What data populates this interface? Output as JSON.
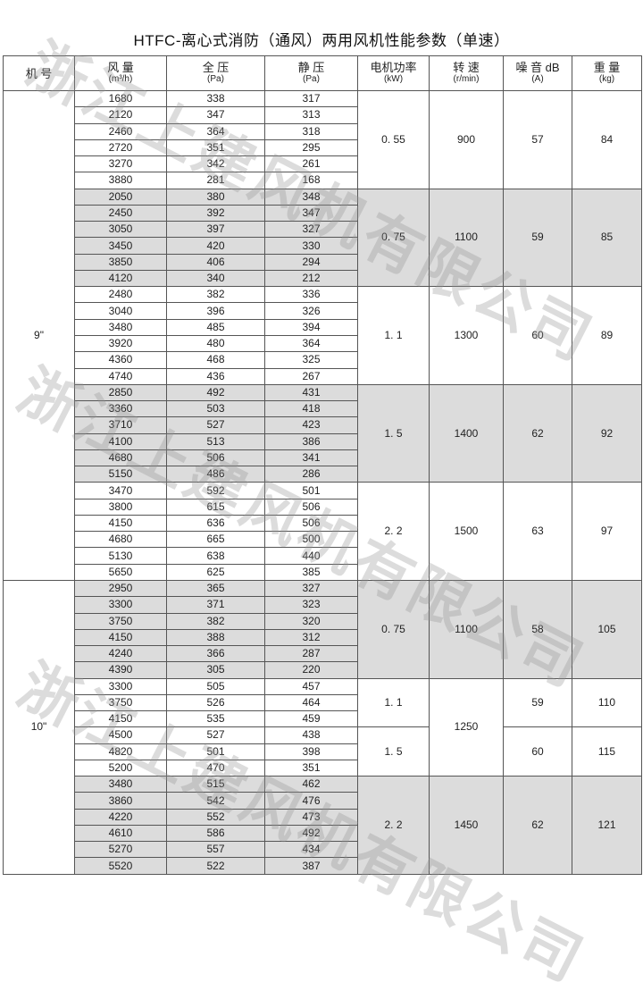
{
  "title": "HTFC-离心式消防（通风）两用风机性能参数（单速）",
  "watermark": "浙江上建风机有限公司",
  "colors": {
    "shade": "#dcdcdc",
    "border": "#555555"
  },
  "headers": [
    {
      "label": "机 号",
      "unit": ""
    },
    {
      "label": "风 量",
      "unit": "(m³/h)"
    },
    {
      "label": "全 压",
      "unit": "(Pa)"
    },
    {
      "label": "静 压",
      "unit": "(Pa)"
    },
    {
      "label": "电机功率",
      "unit": "(kW)"
    },
    {
      "label": "转 速",
      "unit": "(r/min)"
    },
    {
      "label": "噪 音 dB",
      "unit": "(A)"
    },
    {
      "label": "重 量",
      "unit": "(kg)"
    }
  ],
  "models": [
    {
      "model": "9\"",
      "groups": [
        {
          "power": "0. 55",
          "speed": "900",
          "noise": "57",
          "weight": "84",
          "shaded": false,
          "rows": [
            [
              "1680",
              "338",
              "317"
            ],
            [
              "2120",
              "347",
              "313"
            ],
            [
              "2460",
              "364",
              "318"
            ],
            [
              "2720",
              "351",
              "295"
            ],
            [
              "3270",
              "342",
              "261"
            ],
            [
              "3880",
              "281",
              "168"
            ]
          ]
        },
        {
          "power": "0. 75",
          "speed": "1100",
          "noise": "59",
          "weight": "85",
          "shaded": true,
          "rows": [
            [
              "2050",
              "380",
              "348"
            ],
            [
              "2450",
              "392",
              "347"
            ],
            [
              "3050",
              "397",
              "327"
            ],
            [
              "3450",
              "420",
              "330"
            ],
            [
              "3850",
              "406",
              "294"
            ],
            [
              "4120",
              "340",
              "212"
            ]
          ]
        },
        {
          "power": "1. 1",
          "speed": "1300",
          "noise": "60",
          "weight": "89",
          "shaded": false,
          "rows": [
            [
              "2480",
              "382",
              "336"
            ],
            [
              "3040",
              "396",
              "326"
            ],
            [
              "3480",
              "485",
              "394"
            ],
            [
              "3920",
              "480",
              "364"
            ],
            [
              "4360",
              "468",
              "325"
            ],
            [
              "4740",
              "436",
              "267"
            ]
          ]
        },
        {
          "power": "1. 5",
          "speed": "1400",
          "noise": "62",
          "weight": "92",
          "shaded": true,
          "rows": [
            [
              "2850",
              "492",
              "431"
            ],
            [
              "3360",
              "503",
              "418"
            ],
            [
              "3710",
              "527",
              "423"
            ],
            [
              "4100",
              "513",
              "386"
            ],
            [
              "4680",
              "506",
              "341"
            ],
            [
              "5150",
              "486",
              "286"
            ]
          ]
        },
        {
          "power": "2. 2",
          "speed": "1500",
          "noise": "63",
          "weight": "97",
          "shaded": false,
          "rows": [
            [
              "3470",
              "592",
              "501"
            ],
            [
              "3800",
              "615",
              "506"
            ],
            [
              "4150",
              "636",
              "506"
            ],
            [
              "4680",
              "665",
              "500"
            ],
            [
              "5130",
              "638",
              "440"
            ],
            [
              "5650",
              "625",
              "385"
            ]
          ]
        }
      ]
    },
    {
      "model": "10\"",
      "groups": [
        {
          "power": "0. 75",
          "speed": "1100",
          "noise": "58",
          "weight": "105",
          "shaded": true,
          "rows": [
            [
              "2950",
              "365",
              "327"
            ],
            [
              "3300",
              "371",
              "323"
            ],
            [
              "3750",
              "382",
              "320"
            ],
            [
              "4150",
              "388",
              "312"
            ],
            [
              "4240",
              "366",
              "287"
            ],
            [
              "4390",
              "305",
              "220"
            ]
          ]
        },
        {
          "power": "1. 1",
          "speed": "1250",
          "noise": "59",
          "weight": "110",
          "shaded": false,
          "speedSpan": 6,
          "rows": [
            [
              "3300",
              "505",
              "457"
            ],
            [
              "3750",
              "526",
              "464"
            ],
            [
              "4150",
              "535",
              "459"
            ]
          ]
        },
        {
          "power": "1. 5",
          "speed": "",
          "noise": "60",
          "weight": "115",
          "shaded": false,
          "speedSkip": true,
          "rows": [
            [
              "4500",
              "527",
              "438"
            ],
            [
              "4820",
              "501",
              "398"
            ],
            [
              "5200",
              "470",
              "351"
            ]
          ]
        },
        {
          "power": "2. 2",
          "speed": "1450",
          "noise": "62",
          "weight": "121",
          "shaded": true,
          "rows": [
            [
              "3480",
              "515",
              "462"
            ],
            [
              "3860",
              "542",
              "476"
            ],
            [
              "4220",
              "552",
              "473"
            ],
            [
              "4610",
              "586",
              "492"
            ],
            [
              "5270",
              "557",
              "434"
            ],
            [
              "5520",
              "522",
              "387"
            ]
          ]
        }
      ]
    }
  ]
}
